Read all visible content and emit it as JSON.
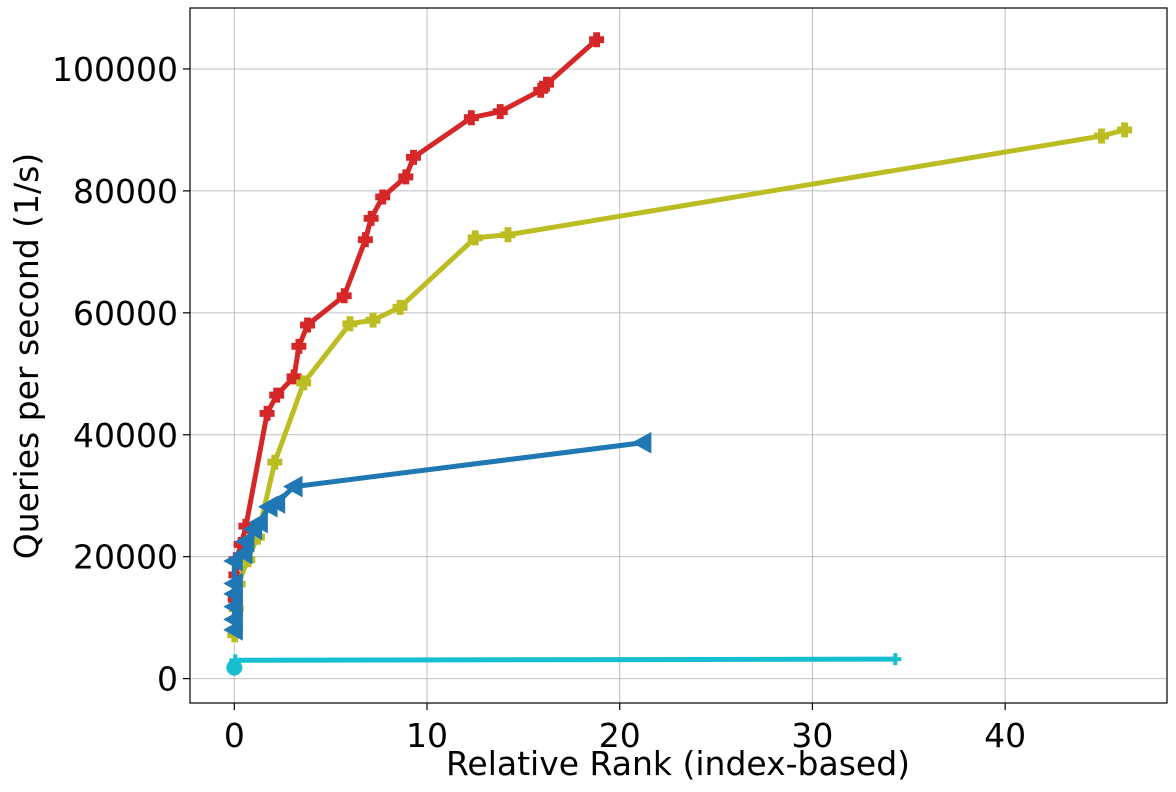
{
  "chart_data": {
    "type": "line",
    "title": "",
    "xlabel": "Relative Rank (index-based)",
    "ylabel": "Queries per second (1/s)",
    "xlim": [
      -2.3,
      48.4
    ],
    "ylim": [
      -4000,
      110000
    ],
    "xticks": [
      0,
      10,
      20,
      30,
      40
    ],
    "yticks": [
      0,
      20000,
      40000,
      60000,
      80000,
      100000
    ],
    "grid": true,
    "legend": "none",
    "series": [
      {
        "color": "#d62728",
        "marker": "plus-filled",
        "points": [
          [
            0.05,
            13000
          ],
          [
            0.08,
            17000
          ],
          [
            0.1,
            19500
          ],
          [
            0.35,
            22000
          ],
          [
            0.6,
            25000
          ],
          [
            1.7,
            43500
          ],
          [
            2.2,
            46500
          ],
          [
            3.1,
            49500
          ],
          [
            3.35,
            54500
          ],
          [
            3.8,
            58000
          ],
          [
            5.7,
            62800
          ],
          [
            6.8,
            72000
          ],
          [
            7.1,
            75500
          ],
          [
            7.7,
            79000
          ],
          [
            8.9,
            82300
          ],
          [
            9.3,
            85500
          ],
          [
            12.3,
            92000
          ],
          [
            13.8,
            93000
          ],
          [
            15.9,
            96500
          ],
          [
            16.2,
            97500
          ],
          [
            18.8,
            104800
          ]
        ]
      },
      {
        "color": "#bcbd22",
        "marker": "plus-filled",
        "points": [
          [
            0.02,
            7200
          ],
          [
            0.05,
            8000
          ],
          [
            0.1,
            11500
          ],
          [
            0.2,
            15500
          ],
          [
            0.7,
            19500
          ],
          [
            1.2,
            23200
          ],
          [
            2.1,
            35500
          ],
          [
            3.6,
            48500
          ],
          [
            6.0,
            58200
          ],
          [
            7.2,
            58800
          ],
          [
            8.6,
            60900
          ],
          [
            12.5,
            72300
          ],
          [
            14.2,
            72800
          ],
          [
            45.0,
            89000
          ],
          [
            46.2,
            90000
          ]
        ]
      },
      {
        "color": "#1f77b4",
        "marker": "triangle-left",
        "points": [
          [
            0.0,
            8000
          ],
          [
            0.0,
            9700
          ],
          [
            0.0,
            11800
          ],
          [
            0.0,
            13900
          ],
          [
            0.0,
            15600
          ],
          [
            0.0,
            19300
          ],
          [
            0.5,
            20500
          ],
          [
            0.6,
            22500
          ],
          [
            1.0,
            24500
          ],
          [
            1.3,
            25600
          ],
          [
            1.8,
            28200
          ],
          [
            2.2,
            28800
          ],
          [
            3.1,
            31500
          ],
          [
            21.2,
            38700
          ]
        ]
      },
      {
        "color": "#17becf",
        "marker": "plus",
        "points": [
          [
            0.0,
            1800
          ],
          [
            0.05,
            3000
          ],
          [
            34.3,
            3200
          ]
        ]
      }
    ]
  }
}
